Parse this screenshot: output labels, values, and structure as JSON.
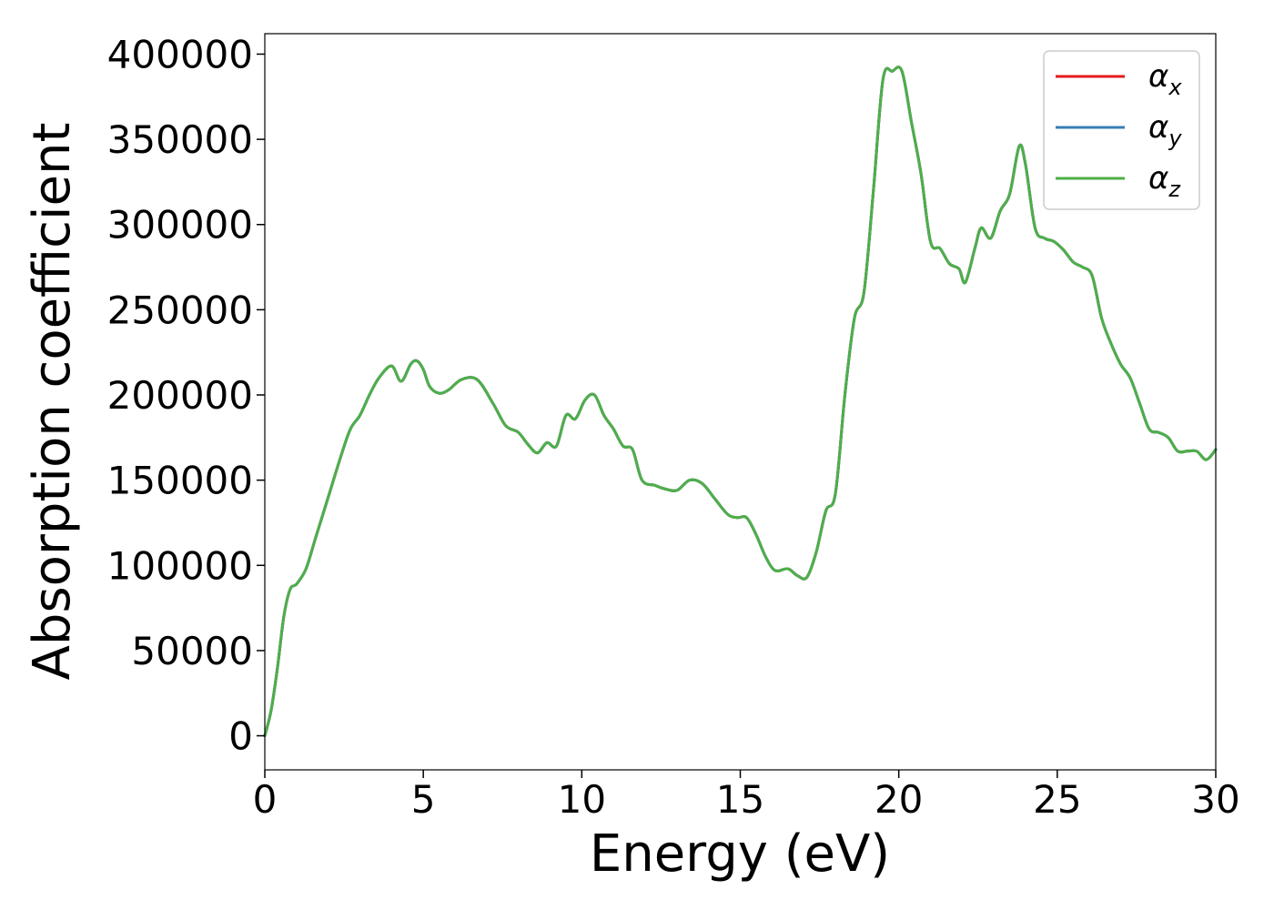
{
  "chart_data": {
    "type": "line",
    "xlabel": "Energy (eV)",
    "ylabel": "Absorption coefficient",
    "xlim": [
      0,
      30
    ],
    "ylim": [
      -20000,
      412000
    ],
    "xticks": [
      0,
      5,
      10,
      15,
      20,
      25,
      30
    ],
    "yticks": [
      0,
      50000,
      100000,
      150000,
      200000,
      250000,
      300000,
      350000,
      400000
    ],
    "grid": false,
    "legend_position": "top-right",
    "legend": [
      {
        "base": "α",
        "sub": "x",
        "color": "#e41a1c"
      },
      {
        "base": "α",
        "sub": "y",
        "color": "#377eb8"
      },
      {
        "base": "α",
        "sub": "z",
        "color": "#4daf4a"
      }
    ],
    "x": [
      0,
      0.2,
      0.4,
      0.6,
      0.8,
      1.0,
      1.3,
      1.6,
      2.0,
      2.4,
      2.7,
      3.0,
      3.3,
      3.6,
      4.0,
      4.3,
      4.6,
      4.8,
      5.0,
      5.2,
      5.5,
      5.8,
      6.2,
      6.7,
      7.2,
      7.6,
      8.0,
      8.3,
      8.6,
      8.9,
      9.2,
      9.5,
      9.8,
      10.1,
      10.4,
      10.7,
      11.0,
      11.3,
      11.6,
      11.9,
      12.3,
      12.6,
      13.0,
      13.4,
      13.8,
      14.2,
      14.6,
      14.9,
      15.2,
      15.5,
      15.8,
      16.1,
      16.5,
      16.8,
      17.1,
      17.4,
      17.7,
      18.0,
      18.3,
      18.6,
      18.9,
      19.2,
      19.5,
      19.8,
      20.1,
      20.4,
      20.7,
      21.0,
      21.3,
      21.6,
      21.9,
      22.1,
      22.4,
      22.6,
      22.9,
      23.2,
      23.5,
      23.8,
      24.0,
      24.3,
      24.6,
      24.9,
      25.2,
      25.5,
      25.8,
      26.1,
      26.4,
      26.7,
      27.0,
      27.3,
      27.6,
      27.9,
      28.2,
      28.5,
      28.8,
      29.1,
      29.4,
      29.7,
      30.0
    ],
    "series": [
      {
        "name": "α_x",
        "color": "#e41a1c",
        "values": [
          0,
          15000,
          40000,
          70000,
          86000,
          89000,
          98000,
          116000,
          140000,
          164000,
          180000,
          188000,
          200000,
          210000,
          217000,
          208000,
          218000,
          220000,
          215000,
          205000,
          201000,
          203000,
          209000,
          209000,
          195000,
          182000,
          178000,
          171000,
          166000,
          172000,
          170000,
          188000,
          186000,
          197000,
          200000,
          188000,
          180000,
          170000,
          168000,
          150000,
          147000,
          145000,
          144000,
          150000,
          148000,
          139000,
          130000,
          128000,
          128000,
          118000,
          105000,
          97000,
          98000,
          94000,
          93000,
          108000,
          132000,
          142000,
          200000,
          245000,
          260000,
          320000,
          385000,
          390000,
          390000,
          360000,
          330000,
          290000,
          286000,
          277000,
          274000,
          266000,
          286000,
          298000,
          292000,
          308000,
          318000,
          346000,
          335000,
          298000,
          292000,
          290000,
          285000,
          278000,
          275000,
          270000,
          245000,
          230000,
          218000,
          210000,
          195000,
          180000,
          178000,
          175000,
          167000,
          167000,
          167000,
          162000,
          168000
        ]
      },
      {
        "name": "α_y",
        "color": "#377eb8",
        "values": [
          0,
          15000,
          40000,
          70000,
          86000,
          89000,
          98000,
          116000,
          140000,
          164000,
          180000,
          188000,
          200000,
          210000,
          217000,
          208000,
          218000,
          220000,
          215000,
          205000,
          201000,
          203000,
          209000,
          209000,
          195000,
          182000,
          178000,
          171000,
          166000,
          172000,
          170000,
          188000,
          186000,
          197000,
          200000,
          188000,
          180000,
          170000,
          168000,
          150000,
          147000,
          145000,
          144000,
          150000,
          148000,
          139000,
          130000,
          128000,
          128000,
          118000,
          105000,
          97000,
          98000,
          94000,
          93000,
          108000,
          132000,
          142000,
          200000,
          245000,
          260000,
          320000,
          385000,
          390000,
          390000,
          360000,
          330000,
          290000,
          286000,
          277000,
          274000,
          266000,
          286000,
          298000,
          292000,
          308000,
          318000,
          346000,
          335000,
          298000,
          292000,
          290000,
          285000,
          278000,
          275000,
          270000,
          245000,
          230000,
          218000,
          210000,
          195000,
          180000,
          178000,
          175000,
          167000,
          167000,
          167000,
          162000,
          168000
        ]
      },
      {
        "name": "α_z",
        "color": "#4daf4a",
        "values": [
          0,
          15000,
          40000,
          70000,
          86000,
          89000,
          98000,
          116000,
          140000,
          164000,
          180000,
          188000,
          200000,
          210000,
          217000,
          208000,
          218000,
          220000,
          215000,
          205000,
          201000,
          203000,
          209000,
          209000,
          195000,
          182000,
          178000,
          171000,
          166000,
          172000,
          170000,
          188000,
          186000,
          197000,
          200000,
          188000,
          180000,
          170000,
          168000,
          150000,
          147000,
          145000,
          144000,
          150000,
          148000,
          139000,
          130000,
          128000,
          128000,
          118000,
          105000,
          97000,
          98000,
          94000,
          93000,
          108000,
          132000,
          142000,
          200000,
          245000,
          260000,
          320000,
          385000,
          390000,
          390000,
          360000,
          330000,
          290000,
          286000,
          277000,
          274000,
          266000,
          286000,
          298000,
          292000,
          308000,
          318000,
          346000,
          335000,
          298000,
          292000,
          290000,
          285000,
          278000,
          275000,
          270000,
          245000,
          230000,
          218000,
          210000,
          195000,
          180000,
          178000,
          175000,
          167000,
          167000,
          167000,
          162000,
          168000
        ]
      }
    ]
  }
}
